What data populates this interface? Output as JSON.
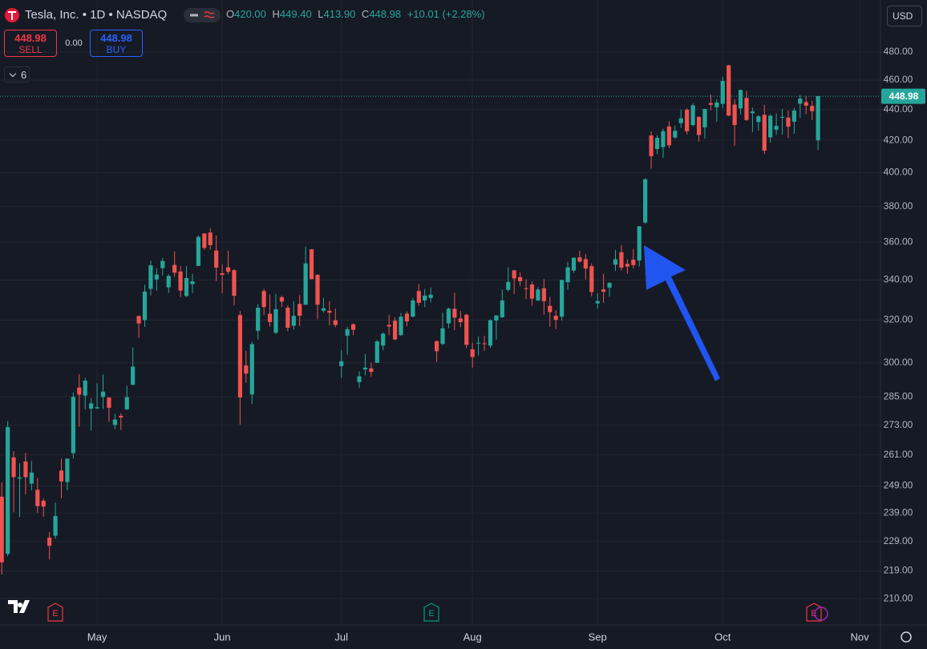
{
  "header": {
    "title": "Tesla, Inc. • 1D • NASDAQ",
    "ohlc": [
      {
        "key": "O",
        "value": "420.00"
      },
      {
        "key": "H",
        "value": "449.40"
      },
      {
        "key": "L",
        "value": "413.90"
      },
      {
        "key": "C",
        "value": "448.98"
      }
    ],
    "change": "+10.01 (+2.28%)",
    "sell": {
      "price": "448.98",
      "label": "SELL"
    },
    "spread": "0.00",
    "buy": {
      "price": "448.98",
      "label": "BUY"
    },
    "indicators": "6",
    "currency": "USD"
  },
  "chart_data": {
    "type": "candlestick",
    "categories": [
      null,
      null,
      null,
      null,
      null,
      null,
      null,
      null,
      null,
      null,
      null,
      null,
      null,
      null,
      null,
      null,
      "May",
      null,
      null,
      null,
      null,
      null,
      null,
      null,
      null,
      null,
      null,
      null,
      null,
      null,
      null,
      null,
      null,
      null,
      null,
      null,
      null,
      "Jun",
      null,
      null,
      null,
      null,
      null,
      null,
      null,
      null,
      null,
      null,
      null,
      null,
      null,
      null,
      null,
      null,
      null,
      null,
      null,
      "Jul",
      null,
      null,
      null,
      null,
      null,
      null,
      null,
      null,
      null,
      null,
      null,
      null,
      null,
      null,
      null,
      null,
      null,
      null,
      null,
      null,
      null,
      "Aug",
      null,
      null,
      null,
      null,
      null,
      null,
      null,
      null,
      null,
      null,
      null,
      null,
      null,
      null,
      null,
      null,
      null,
      null,
      null,
      null,
      "Sep",
      null,
      null,
      null,
      null,
      null,
      null,
      null,
      null,
      null,
      null,
      null,
      null,
      null,
      null,
      null,
      null,
      null,
      null,
      null,
      null,
      "Oct",
      null,
      null,
      null,
      null,
      null,
      null,
      null,
      null,
      null,
      null,
      null,
      null,
      null,
      null,
      null,
      null,
      null,
      null,
      null,
      null,
      null,
      null,
      "Nov"
    ],
    "open": [
      245,
      224.7,
      260,
      251.8,
      258.4,
      249.9,
      247.6,
      243.5,
      230.3,
      230.96,
      254.9,
      250.5,
      261.7,
      288.98,
      285.5,
      279.9,
      280,
      284.9,
      284.6,
      273.1,
      276.9,
      279.6,
      290.2,
      321.99,
      320,
      335.5,
      340.3,
      346.2,
      336.3,
      347.9,
      344.4,
      331.9,
      337.9,
      347.35,
      364.8,
      365.3,
      355.5,
      343.5,
      346.6,
      345.1,
      322.5,
      298.8,
      285.96,
      314.9,
      334.4,
      323.1,
      313.97,
      331.3,
      326.1,
      317.3,
      327.95,
      327.5,
      356.2,
      342.7,
      324.6,
      324.5,
      319.9,
      298.5,
      312.6,
      317.99,
      291.4,
      297,
      297.5,
      300,
      307.9,
      317.7,
      319.7,
      312.8,
      323.15,
      321.7,
      334.4,
      329.7,
      330.9,
      310,
      308.7,
      318.45,
      325.55,
      320.8,
      322.6,
      306.2,
      309.1,
      308.95,
      307.9,
      319.8,
      321.4,
      335,
      345,
      341.5,
      335.8,
      337.7,
      329.6,
      335.8,
      327,
      322.1,
      321.7,
      338.9,
      344.9,
      351.9,
      350.9,
      347.2,
      328.2,
      335.2,
      336.15,
      348,
      354.6,
      348.4,
      350.6,
      350.2,
      370.9,
      423.1,
      414.5,
      415.75,
      428.9,
      421.8,
      431.1,
      439.9,
      429.8,
      435.2,
      428.3,
      444.35,
      441.5,
      443.8,
      470.5,
      443.3,
      440.75,
      447.8,
      437.6,
      431.8,
      436.5,
      421.9,
      426.8,
      434.7,
      434.7,
      432,
      443.9,
      445,
      442.4,
      420,
      null,
      null,
      null,
      null,
      null,
      null,
      null
    ],
    "high": [
      250.4,
      274.7,
      262.5,
      257.7,
      261.8,
      258.6,
      252,
      244.3,
      232.2,
      242.8,
      259.45,
      259.6,
      286.85,
      294.86,
      293.3,
      284.45,
      290.87,
      294.78,
      284.85,
      277.7,
      277.9,
      289.8,
      307,
      322.2,
      337.6,
      350.1,
      346.1,
      351.6,
      343,
      354.99,
      347.35,
      347.27,
      343.18,
      363.8,
      365,
      367.7,
      363.7,
      348,
      355.4,
      345.6,
      324.5,
      305.5,
      309.8,
      327.8,
      335.5,
      332.6,
      332.99,
      332.1,
      327.3,
      329.3,
      332.4,
      357.5,
      356.3,
      343,
      331,
      329.3,
      325.6,
      305.9,
      316.8,
      318.45,
      296.2,
      304,
      300.15,
      310.5,
      314.1,
      322.6,
      321.2,
      323.5,
      324.3,
      330.9,
      338,
      335.4,
      336.2,
      310.2,
      323.6,
      326.1,
      333.5,
      324.5,
      323.1,
      309.3,
      312.1,
      312.5,
      320.5,
      322.3,
      335.15,
      346.6,
      345.26,
      344,
      340.5,
      339.3,
      336.3,
      340.5,
      331.4,
      324.9,
      340.25,
      349.5,
      351.9,
      355.4,
      353.55,
      348.75,
      333.3,
      343.3,
      338.9,
      355.9,
      358.4,
      350.8,
      356.3,
      369,
      396.7,
      425.7,
      423.25,
      427.5,
      432.2,
      429.5,
      440,
      440.97,
      444.2,
      435.35,
      440.5,
      450,
      447,
      462.3,
      470.75,
      446.8,
      453.5,
      452.7,
      441.3,
      436.35,
      443.1,
      436.9,
      437.45,
      440.5,
      439.35,
      441.25,
      449.8,
      449.4,
      446,
      449.4,
      null,
      null,
      null,
      null,
      null,
      null,
      null
    ],
    "low": [
      217.8,
      223.9,
      239.3,
      237.6,
      245.9,
      247.4,
      239.1,
      237.7,
      222.8,
      229.9,
      244.4,
      247.4,
      259.6,
      272.42,
      279.5,
      270.8,
      279.8,
      279.8,
      274.4,
      271.35,
      271,
      279.4,
      290,
      311.5,
      316.8,
      332.2,
      334.7,
      342.3,
      333.4,
      341.6,
      331.3,
      331.4,
      333.2,
      347.3,
      355.9,
      356,
      339.4,
      333.3,
      343,
      327.3,
      273.2,
      291.1,
      281.9,
      310.7,
      322.5,
      316.9,
      313.3,
      326.4,
      314.7,
      315.45,
      317.1,
      327.5,
      340.4,
      320.4,
      323.6,
      317.5,
      316.6,
      293.2,
      303.8,
      312.8,
      288.8,
      294.4,
      293.6,
      300,
      305.65,
      312.7,
      310.5,
      312.6,
      317.1,
      321.4,
      326.9,
      326.4,
      328.7,
      300.4,
      308,
      316.1,
      315.2,
      316.6,
      306.8,
      297.8,
      303.4,
      305.4,
      306.9,
      310.7,
      320.98,
      334.15,
      332.9,
      337,
      330.4,
      327,
      329.6,
      322.5,
      316.8,
      315.65,
      319.7,
      335,
      343.7,
      349.2,
      340.3,
      331.7,
      325.6,
      328.5,
      331.5,
      344.7,
      344.8,
      343.3,
      346.1,
      347,
      370.2,
      402.4,
      411.4,
      409,
      415.1,
      421,
      428,
      423.7,
      429,
      419.1,
      421,
      439.5,
      432,
      441,
      435.6,
      416.6,
      436.7,
      432.5,
      425.2,
      426.2,
      411.45,
      418.6,
      423.5,
      423.6,
      421.3,
      424.2,
      434.5,
      437,
      433,
      413.9,
      null,
      null,
      null,
      null,
      null,
      null,
      null
    ],
    "close": [
      221.86,
      272.2,
      252.4,
      252.3,
      252.35,
      254.11,
      241.55,
      241.37,
      227.5,
      237.97,
      250.74,
      259.51,
      284.95,
      285.88,
      292.03,
      282.16,
      280.52,
      287.21,
      280.26,
      275.35,
      276.22,
      284.82,
      298.26,
      318.38,
      334.07,
      347.68,
      342.82,
      349.98,
      342.09,
      343.82,
      334.62,
      341.04,
      339.34,
      362.89,
      356.9,
      358.43,
      346.46,
      342.69,
      344.27,
      332.05,
      284.7,
      295.14,
      308.58,
      326.09,
      326.43,
      319.11,
      325.31,
      329.13,
      316.35,
      322.05,
      322.16,
      348.68,
      340.47,
      327.55,
      325.78,
      323.63,
      317.66,
      300.71,
      315.65,
      315.35,
      293.94,
      297.81,
      295.88,
      309.87,
      313.51,
      316.9,
      310.78,
      321.67,
      319.41,
      329.65,
      328.49,
      332.11,
      332.56,
      305.3,
      316.06,
      325.59,
      321.2,
      319.04,
      308.27,
      302.63,
      309.26,
      308.72,
      319.91,
      322.27,
      329.65,
      339.03,
      340.84,
      339.38,
      335.58,
      330.56,
      335.16,
      329.31,
      323.9,
      320.11,
      340.01,
      346.6,
      351.67,
      349.6,
      345.98,
      333.87,
      329.36,
      334.09,
      338.53,
      350.84,
      346.4,
      346.97,
      347.79,
      368.81,
      395.94,
      410.04,
      421.62,
      425.86,
      416.85,
      426.07,
      434.21,
      425.85,
      442.79,
      423.39,
      440.4,
      443.21,
      444.72,
      459.46,
      436,
      429.83,
      453.25,
      433.09,
      438.69,
      435.54,
      413.49,
      435.9,
      429.24,
      435.15,
      428.75,
      439.31,
      447.43,
      442.6,
      438.97,
      448.98,
      null,
      null,
      null,
      null,
      null,
      null,
      null
    ],
    "up_color": "#26a69a",
    "down_color": "#ef5350",
    "log_scale": true,
    "grid": true,
    "ylim": [
      201.8,
      519.3
    ],
    "yticks": [
      {
        "value": 480,
        "label": "480.00"
      },
      {
        "value": 460,
        "label": "460.00"
      },
      {
        "value": 440,
        "label": "440.00"
      },
      {
        "value": 420,
        "label": "420.00"
      },
      {
        "value": 400,
        "label": "400.00"
      },
      {
        "value": 380,
        "label": "380.00"
      },
      {
        "value": 360,
        "label": "360.00"
      },
      {
        "value": 340,
        "label": "340.00"
      },
      {
        "value": 320,
        "label": "320.00"
      },
      {
        "value": 300,
        "label": "300.00"
      },
      {
        "value": 285,
        "label": "285.00"
      },
      {
        "value": 273,
        "label": "273.00"
      },
      {
        "value": 261,
        "label": "261.00"
      },
      {
        "value": 249,
        "label": "249.00"
      },
      {
        "value": 239,
        "label": "239.00"
      },
      {
        "value": 229,
        "label": "229.00"
      },
      {
        "value": 219,
        "label": "219.00"
      },
      {
        "value": 210,
        "label": "210.00"
      }
    ],
    "last_price": {
      "value": 448.98,
      "label": "448.98"
    },
    "events": [
      "E",
      "E",
      "E"
    ]
  }
}
